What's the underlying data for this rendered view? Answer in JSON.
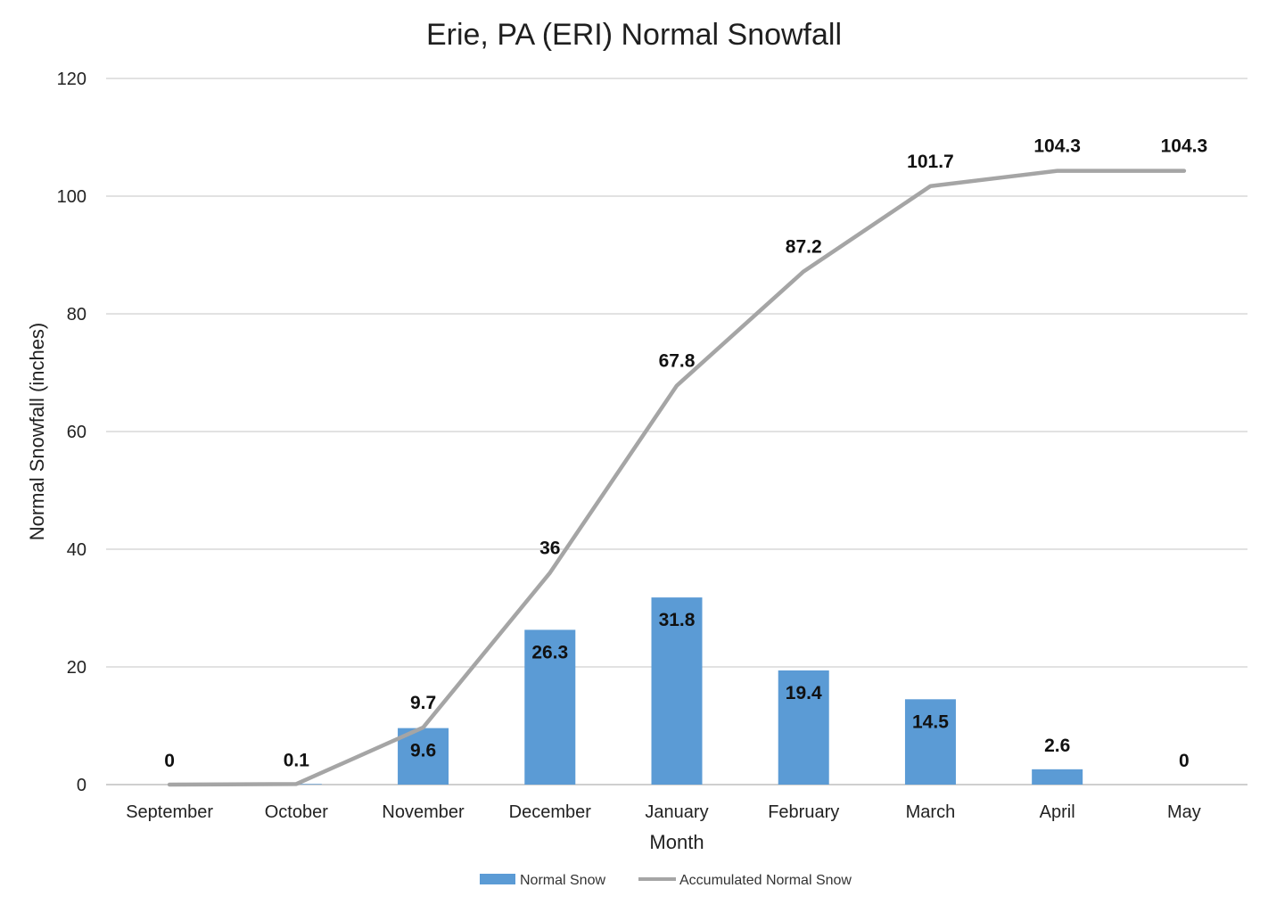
{
  "chart_data": {
    "type": "bar",
    "title": "Erie, PA (ERI) Normal Snowfall",
    "xlabel": "Month",
    "ylabel": "Normal Snowfall (inches)",
    "ylim": [
      0,
      120
    ],
    "yticks": [
      0,
      20,
      40,
      60,
      80,
      100,
      120
    ],
    "grid": true,
    "legend_position": "bottom",
    "categories": [
      "September",
      "October",
      "November",
      "December",
      "January",
      "February",
      "March",
      "April",
      "May"
    ],
    "series": [
      {
        "name": "Normal Snow",
        "type": "bar",
        "color": "#5b9bd5",
        "values": [
          0,
          0.1,
          9.6,
          26.3,
          31.8,
          19.4,
          14.5,
          2.6,
          0
        ],
        "labels": [
          "0",
          "0.1",
          "9.6",
          "26.3",
          "31.8",
          "19.4",
          "14.5",
          "2.6",
          "0"
        ]
      },
      {
        "name": "Accumulated Normal Snow",
        "type": "line",
        "color": "#a5a5a5",
        "values": [
          0,
          0.1,
          9.7,
          36,
          67.8,
          87.2,
          101.7,
          104.3,
          104.3
        ],
        "labels": [
          "",
          "",
          "9.7",
          "36",
          "67.8",
          "87.2",
          "101.7",
          "104.3",
          "104.3"
        ]
      }
    ]
  }
}
